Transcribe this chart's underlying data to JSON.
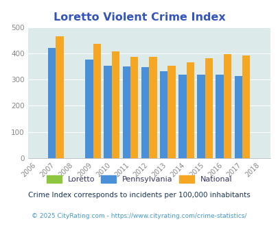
{
  "title": "Loretto Violent Crime Index",
  "years": [
    2006,
    2007,
    2008,
    2009,
    2010,
    2011,
    2012,
    2013,
    2014,
    2015,
    2016,
    2017,
    2018
  ],
  "data_years": [
    2007,
    2009,
    2010,
    2011,
    2012,
    2013,
    2014,
    2015,
    2016,
    2017
  ],
  "loretto": [
    0,
    0,
    0,
    0,
    0,
    0,
    0,
    0,
    0,
    0
  ],
  "pennsylvania": [
    420,
    375,
    352,
    350,
    347,
    332,
    318,
    318,
    318,
    313
  ],
  "national": [
    465,
    435,
    407,
    387,
    387,
    352,
    365,
    381,
    397,
    393
  ],
  "color_loretto": "#8dc63f",
  "color_pennsylvania": "#4a90d9",
  "color_national": "#f5a623",
  "color_background": "#ddeaea",
  "color_title": "#3355bb",
  "color_legend_text": "#333366",
  "color_subtitle": "#1a3355",
  "color_footer": "#4499cc",
  "ylim": [
    0,
    500
  ],
  "yticks": [
    0,
    100,
    200,
    300,
    400,
    500
  ],
  "subtitle": "Crime Index corresponds to incidents per 100,000 inhabitants",
  "footer": "© 2025 CityRating.com - https://www.cityrating.com/crime-statistics/",
  "bar_width": 0.42
}
